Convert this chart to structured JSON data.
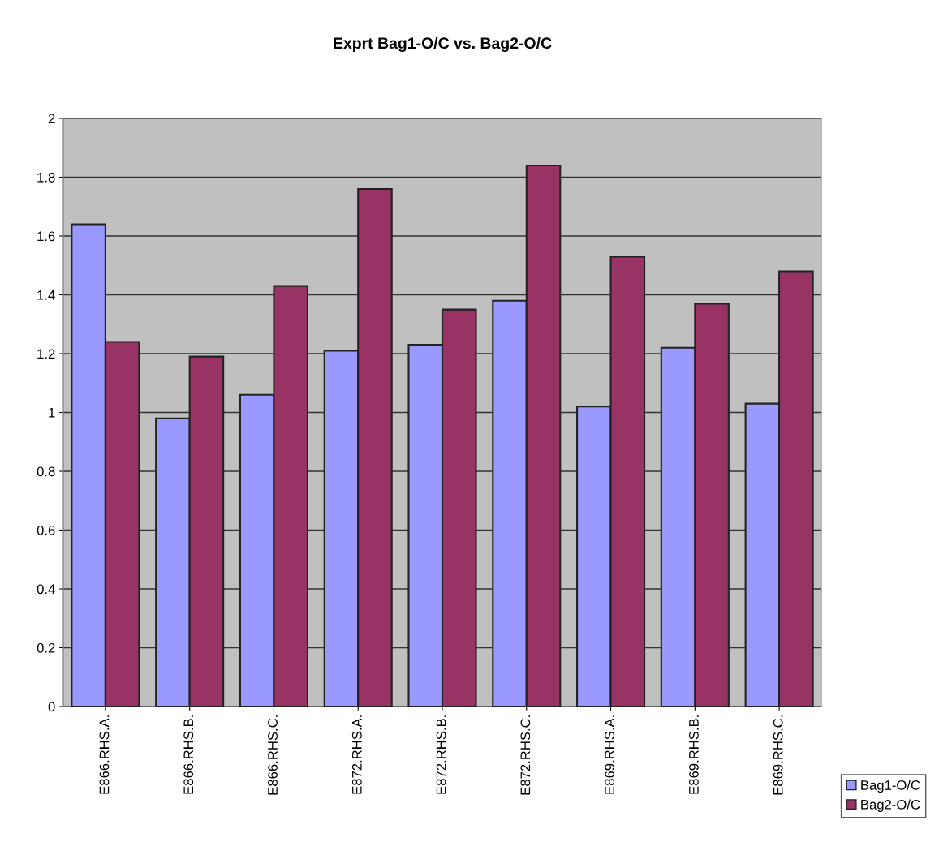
{
  "chart_data": {
    "type": "bar",
    "title": "Exprt Bag1-O/C vs. Bag2-O/C",
    "categories": [
      "E866.RHS.A.",
      "E866.RHS.B.",
      "E866.RHS.C.",
      "E872.RHS.A.",
      "E872.RHS.B.",
      "E872.RHS.C.",
      "E869.RHS.A.",
      "E869.RHS.B.",
      "E869.RHS.C."
    ],
    "series": [
      {
        "name": "Bag1-O/C",
        "color": "#9999ff",
        "values": [
          1.64,
          0.98,
          1.06,
          1.21,
          1.23,
          1.38,
          1.02,
          1.22,
          1.03
        ]
      },
      {
        "name": "Bag2-O/C",
        "color": "#993366",
        "values": [
          1.24,
          1.19,
          1.43,
          1.76,
          1.35,
          1.84,
          1.53,
          1.37,
          1.48
        ]
      }
    ],
    "ylim": [
      0,
      2
    ],
    "yticks": [
      0,
      0.2,
      0.4,
      0.6,
      0.8,
      1,
      1.2,
      1.4,
      1.6,
      1.8,
      2
    ],
    "grid": "y",
    "legend": "bottom right"
  }
}
